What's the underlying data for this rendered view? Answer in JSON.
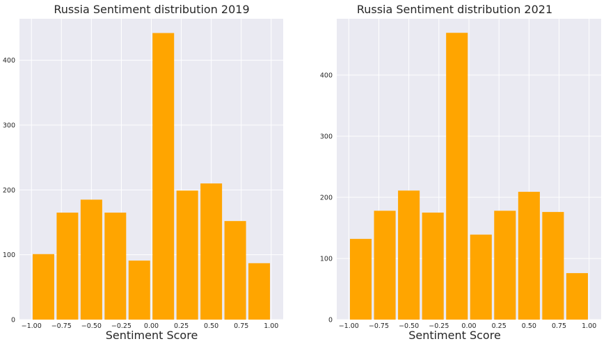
{
  "chart_data": [
    {
      "type": "bar",
      "title": "Russia Sentiment distribution 2019",
      "xlabel": "Sentiment Score",
      "ylabel": "",
      "bin_edges": [
        -1.0,
        -0.8,
        -0.6,
        -0.4,
        -0.2,
        0.0,
        0.2,
        0.4,
        0.6,
        0.8,
        1.0
      ],
      "values": [
        101,
        165,
        185,
        165,
        91,
        442,
        199,
        210,
        152,
        87
      ],
      "xlim": [
        -1.1,
        1.1
      ],
      "ylim": [
        0,
        464
      ],
      "xticks": [
        -1.0,
        -0.75,
        -0.5,
        -0.25,
        0.0,
        0.25,
        0.5,
        0.75,
        1.0
      ],
      "xtick_labels": [
        "−1.00",
        "−0.75",
        "−0.50",
        "−0.25",
        "0.00",
        "0.25",
        "0.50",
        "0.75",
        "1.00"
      ],
      "yticks": [
        0,
        100,
        200,
        300,
        400
      ],
      "ytick_labels": [
        "0",
        "100",
        "200",
        "300",
        "400"
      ],
      "grid": true,
      "bar_color": "#ffa500",
      "background_color": "#eaeaf2"
    },
    {
      "type": "bar",
      "title": "Russia Sentiment distribution 2021",
      "xlabel": "Sentiment Score",
      "ylabel": "",
      "bin_edges": [
        -1.0,
        -0.8,
        -0.6,
        -0.4,
        -0.2,
        0.0,
        0.2,
        0.4,
        0.6,
        0.8,
        1.0
      ],
      "values": [
        132,
        178,
        211,
        175,
        469,
        139,
        178,
        209,
        176,
        76
      ],
      "xlim": [
        -1.1,
        1.1
      ],
      "ylim": [
        0,
        492
      ],
      "xticks": [
        -1.0,
        -0.75,
        -0.5,
        -0.25,
        0.0,
        0.25,
        0.5,
        0.75,
        1.0
      ],
      "xtick_labels": [
        "−1.00",
        "−0.75",
        "−0.50",
        "−0.25",
        "0.00",
        "0.25",
        "0.50",
        "0.75",
        "1.00"
      ],
      "yticks": [
        0,
        100,
        200,
        300,
        400
      ],
      "ytick_labels": [
        "0",
        "100",
        "200",
        "300",
        "400"
      ],
      "grid": true,
      "bar_color": "#ffa500",
      "background_color": "#eaeaf2"
    }
  ]
}
